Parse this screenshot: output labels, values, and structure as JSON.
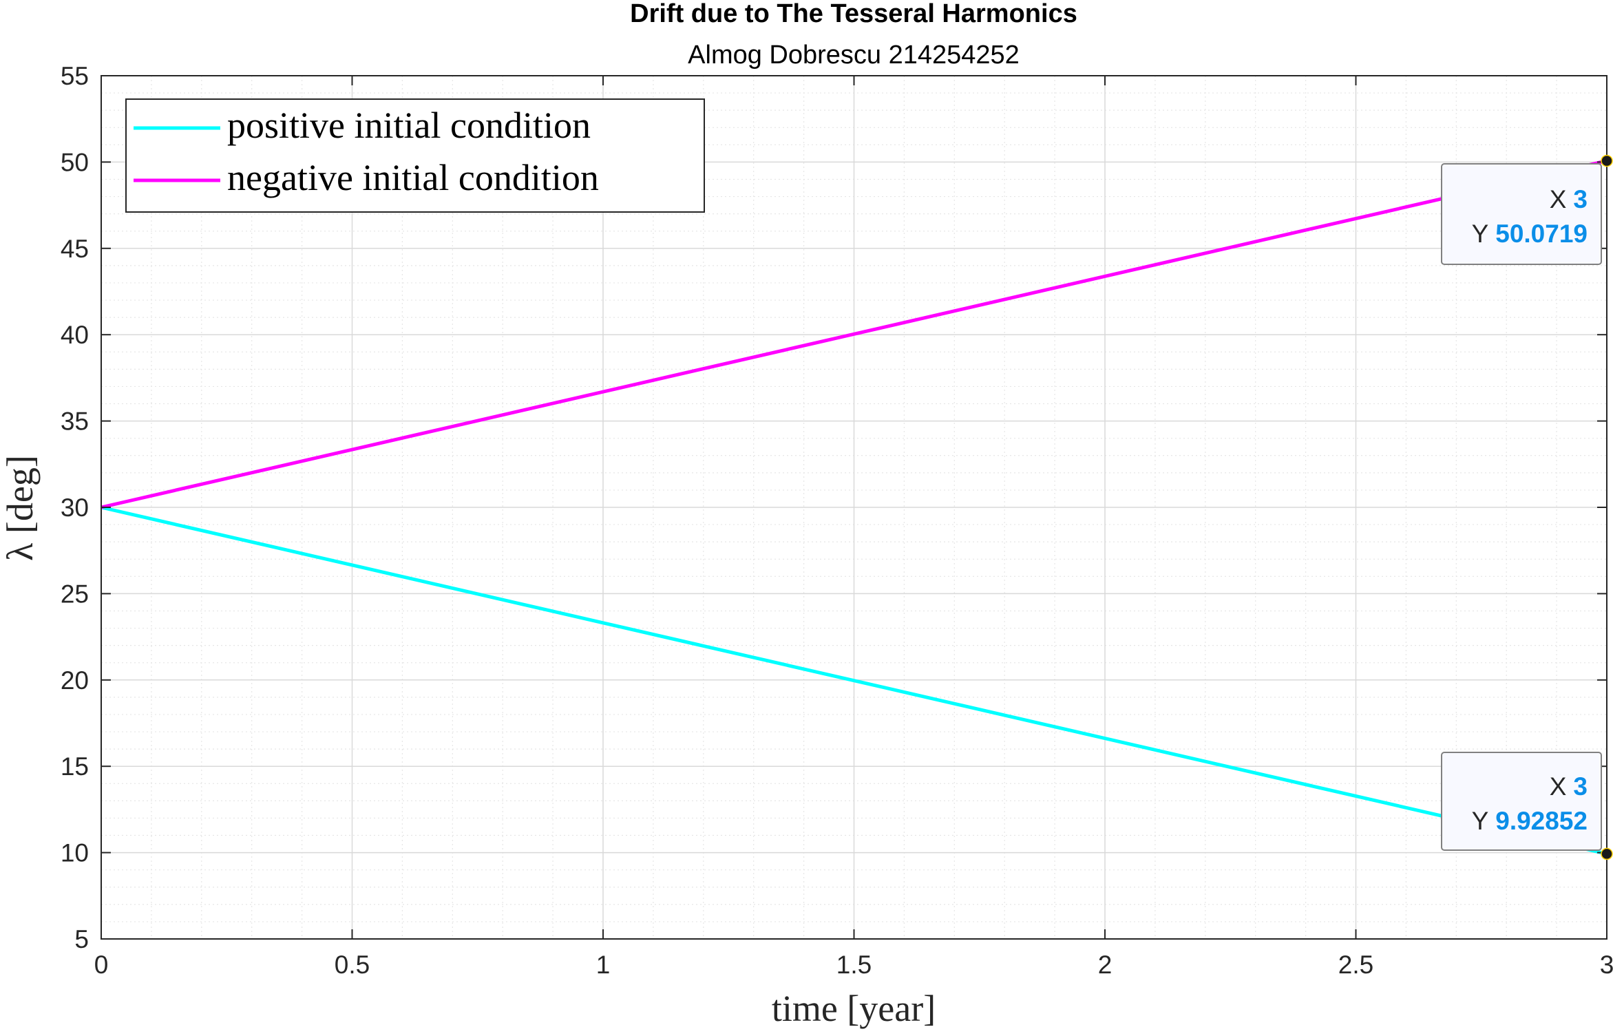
{
  "chart_data": {
    "type": "line",
    "title": "Drift due to The Tesseral Harmonics",
    "subtitle": "Almog Dobrescu 214254252",
    "xlabel": "time [year]",
    "ylabel": "λ [deg]",
    "xlim": [
      0,
      3
    ],
    "ylim": [
      5,
      55
    ],
    "xticks": [
      0,
      0.5,
      1,
      1.5,
      2,
      2.5,
      3
    ],
    "xtick_labels": [
      "0",
      "0.5",
      "1",
      "1.5",
      "2",
      "2.5",
      "3"
    ],
    "yticks": [
      5,
      10,
      15,
      20,
      25,
      30,
      35,
      40,
      45,
      50,
      55
    ],
    "ytick_labels": [
      "5",
      "10",
      "15",
      "20",
      "25",
      "30",
      "35",
      "40",
      "45",
      "50",
      "55"
    ],
    "grid": true,
    "minor_grid": true,
    "legend_position": "top-left",
    "series": [
      {
        "name": "positive initial condition",
        "color": "#00ffff",
        "x": [
          0,
          3
        ],
        "y": [
          30,
          9.92852
        ]
      },
      {
        "name": "negative initial condition",
        "color": "#ff00ff",
        "x": [
          0,
          3
        ],
        "y": [
          30,
          50.0719
        ]
      }
    ],
    "datatips": [
      {
        "x_label": "X",
        "x_value": "3",
        "y_label": "Y",
        "y_value": "50.0719",
        "x": 3,
        "y": 50.0719
      },
      {
        "x_label": "X",
        "x_value": "3",
        "y_label": "Y",
        "y_value": "9.92852",
        "x": 3,
        "y": 9.92852
      }
    ],
    "colors": {
      "datatip_value": "#0b8ee8",
      "axis": "#262626",
      "grid": "#d9d9d9"
    }
  }
}
